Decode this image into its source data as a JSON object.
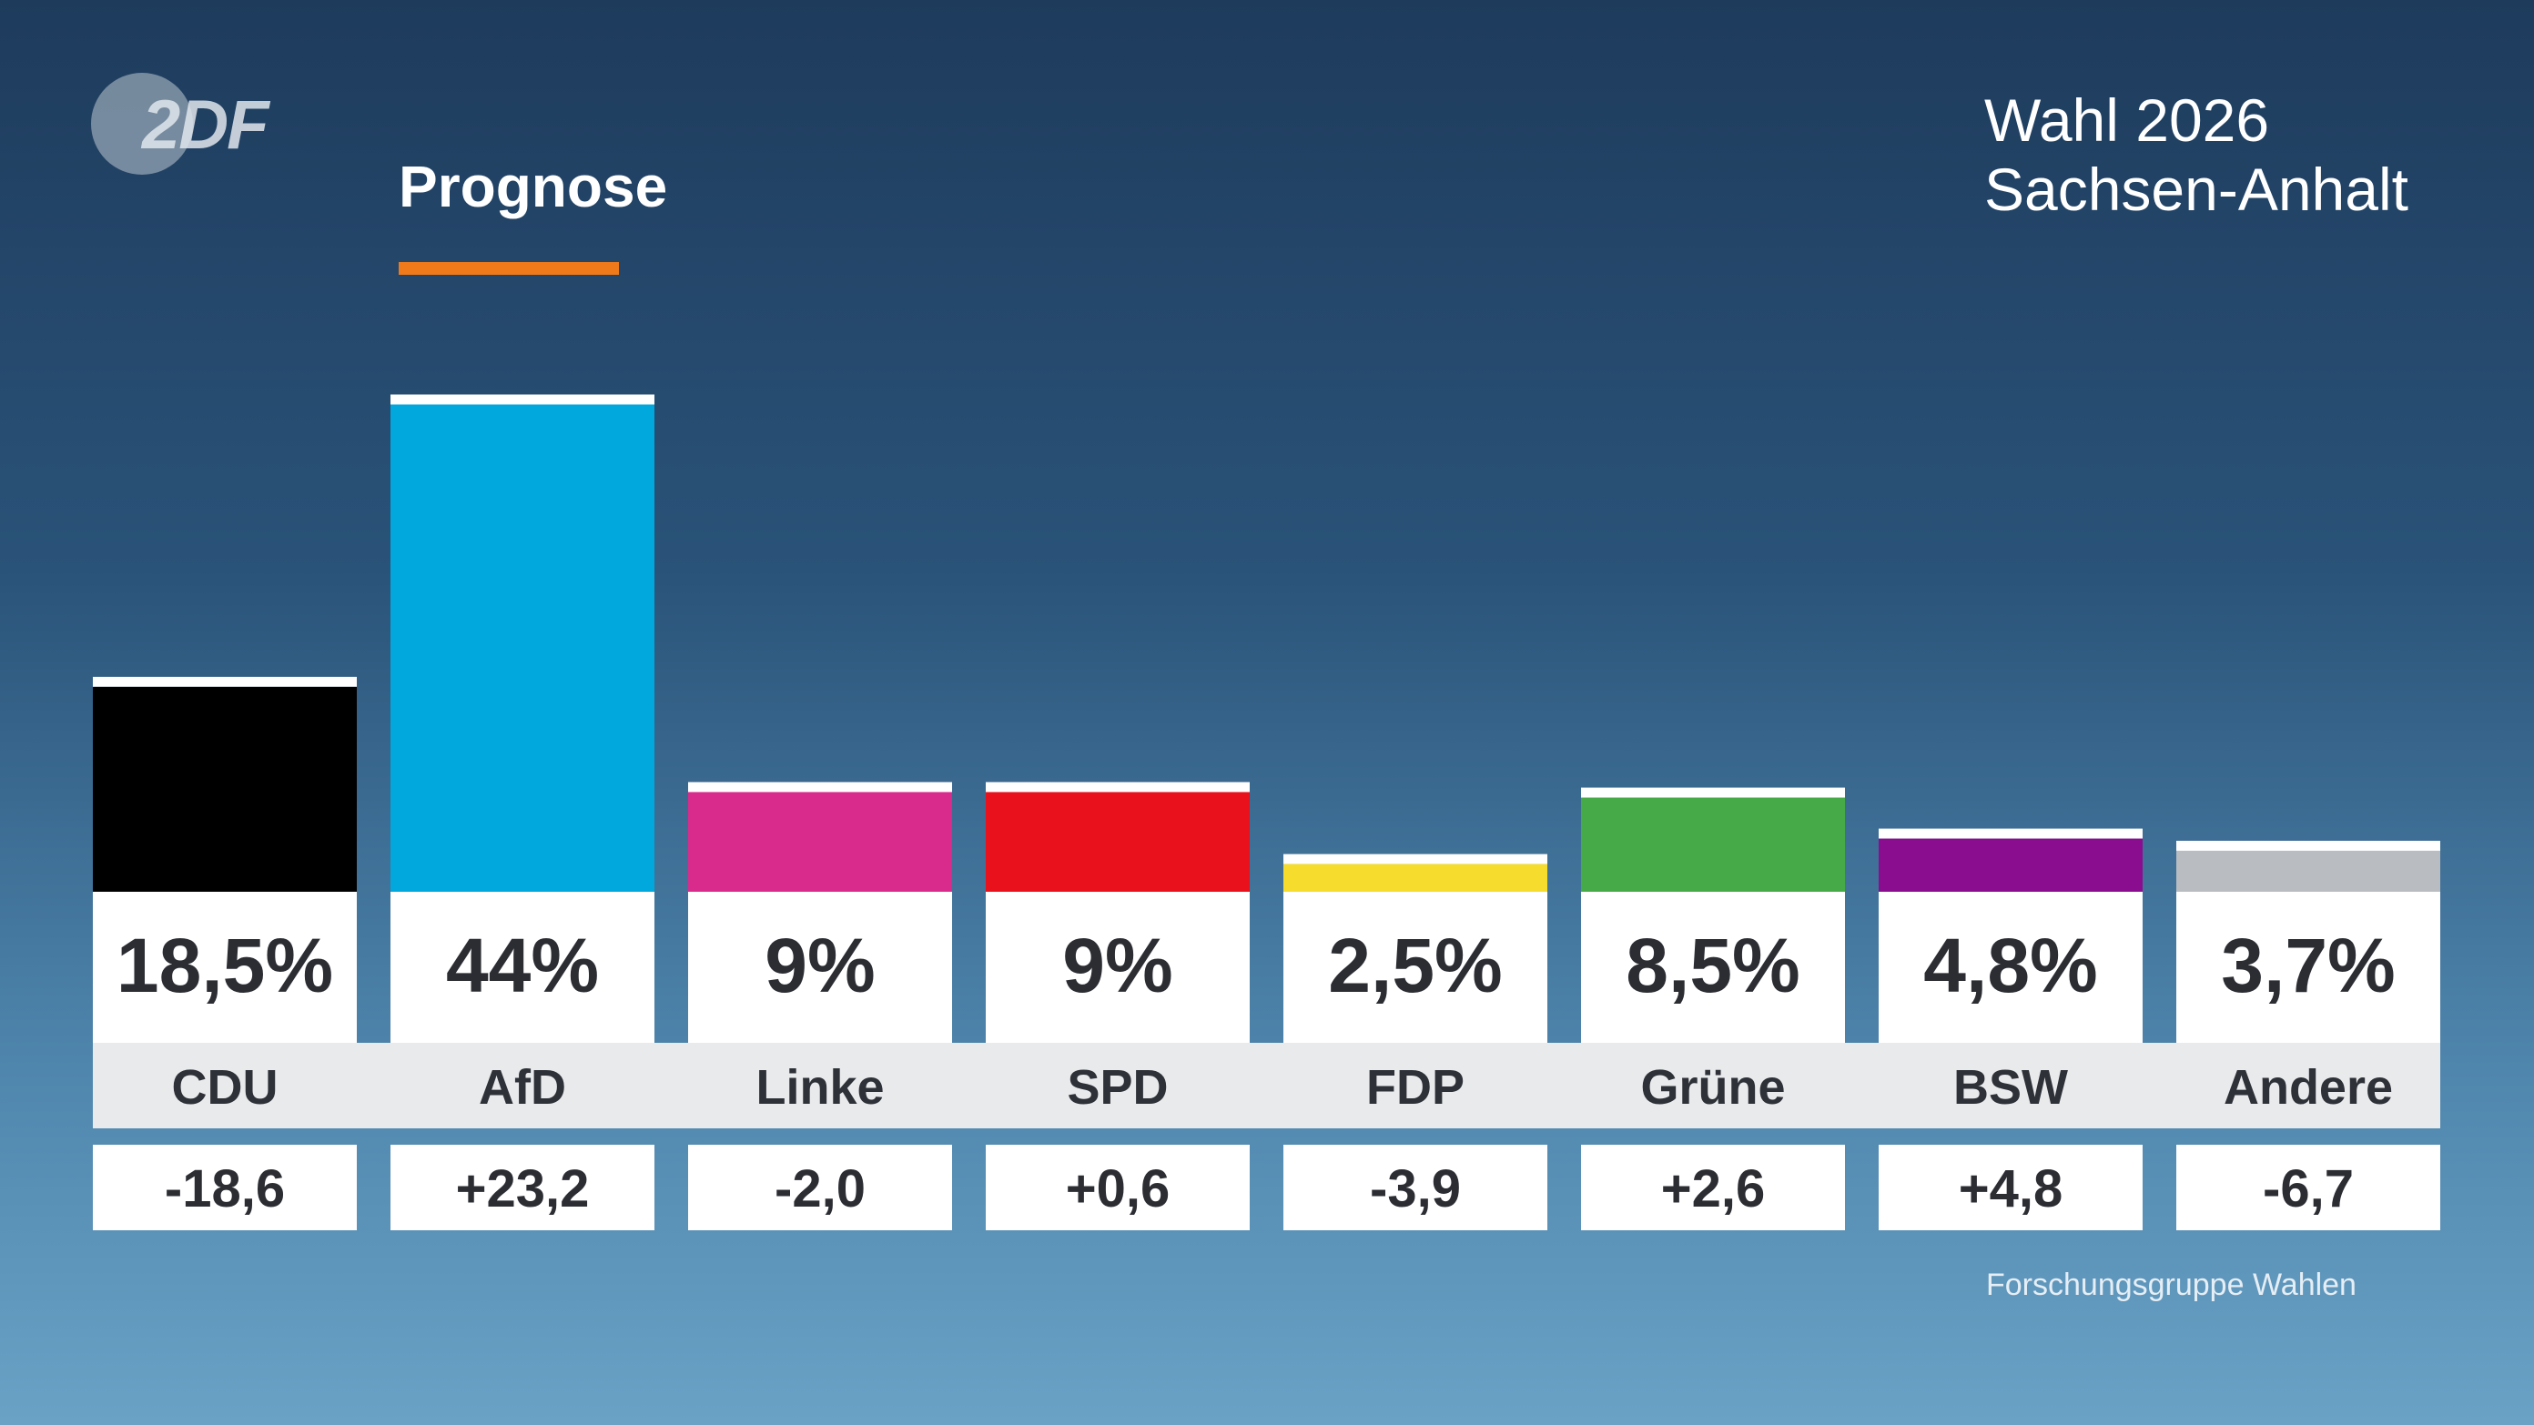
{
  "brand": {
    "logo_text": "2DF",
    "header": "Prognose",
    "title_line1": "Wahl 2026",
    "title_line2": "Sachsen-Anhalt",
    "source": "Forschungsgruppe Wahlen",
    "accent_color": "#f07a1a"
  },
  "chart_data": {
    "type": "bar",
    "title": "",
    "categories": [
      "CDU",
      "AfD",
      "Linke",
      "SPD",
      "FDP",
      "Grüne",
      "BSW",
      "Andere"
    ],
    "values": [
      18.5,
      44,
      9,
      9,
      2.5,
      8.5,
      4.8,
      3.7
    ],
    "value_labels": [
      "18,5%",
      "44%",
      "9%",
      "9%",
      "2,5%",
      "8,5%",
      "4,8%",
      "3,7%"
    ],
    "changes": [
      -18.6,
      23.2,
      -2.0,
      0.6,
      -3.9,
      2.6,
      4.8,
      -6.7
    ],
    "change_labels": [
      "-18,6",
      "+23,2",
      "-2,0",
      "+0,6",
      "-3,9",
      "+2,6",
      "+4,8",
      "-6,7"
    ],
    "colors": [
      "#000000",
      "#00a8de",
      "#d92b8c",
      "#e8111c",
      "#f6dc2c",
      "#47aa48",
      "#8a0c8f",
      "#b9bcc0"
    ],
    "xlabel": "",
    "ylabel": "",
    "grid": false
  }
}
